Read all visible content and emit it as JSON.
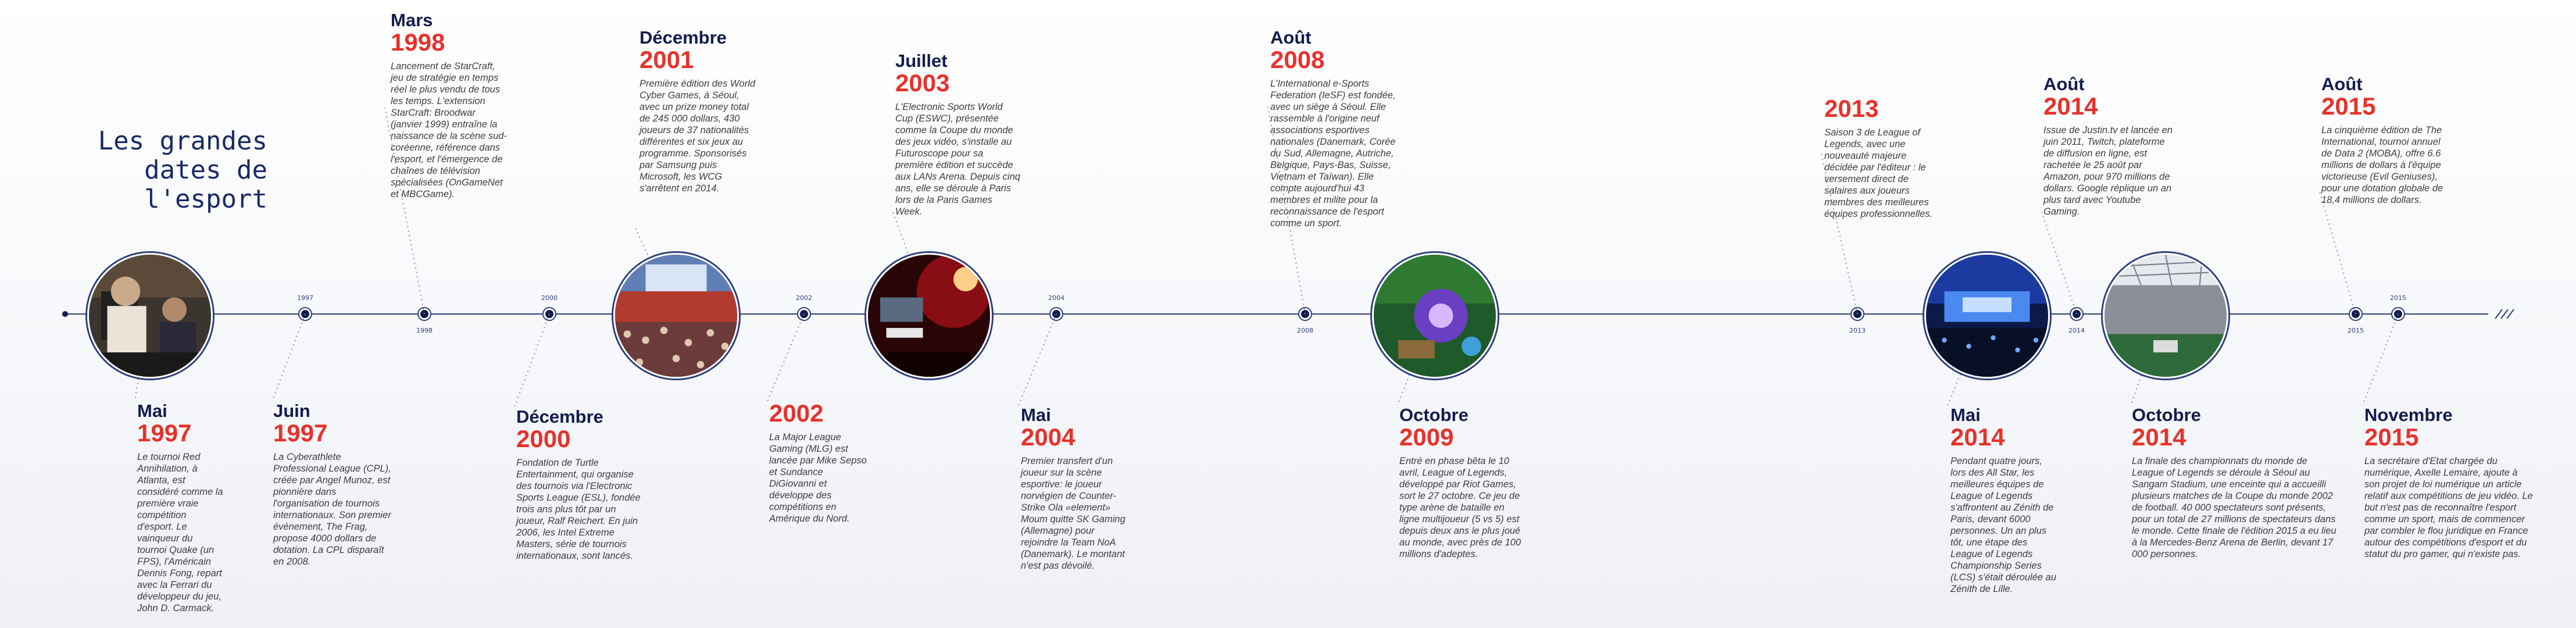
{
  "title": "Les grandes\ndates de\nl'esport",
  "colors": {
    "accent": "#e6322b",
    "navy": "#141c4e",
    "axis": "#2d3f7a"
  },
  "ticks": [
    "1997",
    "1998",
    "2000",
    "2002",
    "2004",
    "2008",
    "2013",
    "2014",
    "2015",
    "2015"
  ],
  "events": [
    {
      "id": "mai-1997",
      "month": "Mai",
      "year": "1997",
      "description": "Le tournoi Red Annihilation, à Atlanta, est considéré comme la première vraie compétition d'esport. Le vainqueur du tournoi Quake (un FPS), l'Américain Dennis Fong, repart avec la Ferrari du développeur du jeu, John D. Carmack."
    },
    {
      "id": "juin-1997",
      "month": "Juin",
      "year": "1997",
      "description": "La Cyberathlete Professional League (CPL), créée par Angel Munoz, est pionnière dans l'organisation de tournois internationaux. Son premier événement, The Frag, propose 4000 dollars de dotation. La CPL disparaît en 2008."
    },
    {
      "id": "mars-1998",
      "month": "Mars",
      "year": "1998",
      "description": "Lancement de StarCraft, jeu de stratégie en temps réel le plus vendu de tous les temps. L'extension StarCraft: Broodwar (janvier 1999) entraîne la naissance de la scène sud-coréenne, référence dans l'esport, et l'émergence de chaînes de télévision spécialisées (OnGameNet et MBCGame)."
    },
    {
      "id": "decembre-2000",
      "month": "Décembre",
      "year": "2000",
      "description": "Fondation de Turtle Entertainment, qui organise des tournois via l'Electronic Sports League (ESL), fondée trois ans plus tôt par un joueur, Ralf Reichert. En juin 2006, les Intel Extreme Masters, série de tournois internationaux, sont lancés."
    },
    {
      "id": "decembre-2001",
      "month": "Décembre",
      "year": "2001",
      "description": "Première édition des World Cyber Games, à Séoul, avec un prize money total de 245 000 dollars, 430 joueurs de 37 nationalités différentes et six jeux au programme. Sponsorisés par Samsung puis Microsoft, les WCG s'arrêtent en 2014."
    },
    {
      "id": "2002",
      "month": "",
      "year": "2002",
      "description": "La Major League Gaming (MLG) est lancée par Mike Sepso et Sundance DiGiovanni et développe des compétitions en Amérique du Nord."
    },
    {
      "id": "juillet-2003",
      "month": "Juillet",
      "year": "2003",
      "description": "L'Electronic Sports World Cup (ESWC), présentée comme la Coupe du monde des jeux vidéo, s'installe au Futuroscope pour sa première édition et succède aux LANs Arena. Depuis cinq ans, elle se déroule à Paris lors de la Paris Games Week."
    },
    {
      "id": "mai-2004",
      "month": "Mai",
      "year": "2004",
      "description": "Premier transfert d'un joueur sur la scène esportive: le joueur norvégien de Counter-Strike Ola «element» Moum quitte SK Gaming (Allemagne) pour rejoindre la Team NoA (Danemark). Le montant n'est pas dévoilé."
    },
    {
      "id": "aout-2008",
      "month": "Août",
      "year": "2008",
      "description": "L'International e-Sports Federation (IeSF) est fondée, avec un siège à Séoul. Elle rassemble à l'origine neuf associations esportives nationales (Danemark, Corée du Sud, Allemagne, Autriche, Belgique, Pays-Bas, Suisse, Vietnam et Taïwan). Elle compte aujourd'hui 43 membres et milite pour la reconnaissance de l'esport comme un sport."
    },
    {
      "id": "octobre-2009",
      "month": "Octobre",
      "year": "2009",
      "description": "Entré en phase bêta le 10 avril, League of Legends, développé par Riot Games, sort le 27 octobre. Ce jeu de type arène de bataille en ligne multijoueur (5 vs 5) est depuis deux ans le plus joué au monde, avec près de 100 millions d'adeptes."
    },
    {
      "id": "2013",
      "month": "",
      "year": "2013",
      "description": "Saison 3 de League of Legends, avec une nouveauté majeure décidée par l'éditeur : le versement direct de salaires aux joueurs membres des meilleures équipes professionnelles."
    },
    {
      "id": "mai-2014",
      "month": "Mai",
      "year": "2014",
      "description": "Pendant quatre jours, lors des All Star, les meilleures équipes de League of Legends s'affrontent au Zénith de Paris, devant 6000 personnes. Un an plus tôt, une étape des League of Legends Championship Series (LCS) s'était déroulée au Zénith de Lille."
    },
    {
      "id": "aout-2014",
      "month": "Août",
      "year": "2014",
      "description": "Issue de Justin.tv et lancée en juin 2011, Twitch, plateforme de diffusion en ligne, est rachetée le 25 août par Amazon, pour 970 millions de dollars. Google réplique un an plus tard avec Youtube Gaming."
    },
    {
      "id": "octobre-2014",
      "month": "Octobre",
      "year": "2014",
      "description": "La finale des championnats du monde de League of Legends se déroule à Séoul au Sangam Stadium, une enceinte qui a accueilli plusieurs matches de la Coupe du monde 2002 de football. 40 000 spectateurs sont présents, pour un total de 27 millions de spectateurs dans le monde. Cette finale de l'édition 2015 a eu lieu à la Mercedes-Benz Arena de Berlin, devant 17 000 personnes."
    },
    {
      "id": "aout-2015",
      "month": "Août",
      "year": "2015",
      "description": "La cinquième édition de The International, tournoi annuel de Data 2 (MOBA), offre 6.6 millions de dollars à l'équipe victorieuse (Evil Geniuses), pour une dotation globale de 18,4 millions de dollars."
    },
    {
      "id": "novembre-2015",
      "month": "Novembre",
      "year": "2015",
      "description": "La secrétaire d'Etat chargée du numérique, Axelle Lemaire, ajoute à son projet de loi numérique un article relatif aux compétitions de jeu vidéo. Le but n'est pas de reconnaître l'esport comme un sport, mais de commencer par combler le flou juridique en France autour des compétitions d'esport et du statut du pro gamer, qui n'existe pas."
    }
  ],
  "photos": [
    {
      "id": "photo-1997",
      "icon": "lan-players-photo"
    },
    {
      "id": "photo-2001",
      "icon": "arena-crowd-photo"
    },
    {
      "id": "photo-2003",
      "icon": "stage-lights-photo"
    },
    {
      "id": "photo-2009",
      "icon": "game-screenshot-photo"
    },
    {
      "id": "photo-2014a",
      "icon": "arena-stage-photo"
    },
    {
      "id": "photo-2014b",
      "icon": "stadium-photo"
    }
  ]
}
